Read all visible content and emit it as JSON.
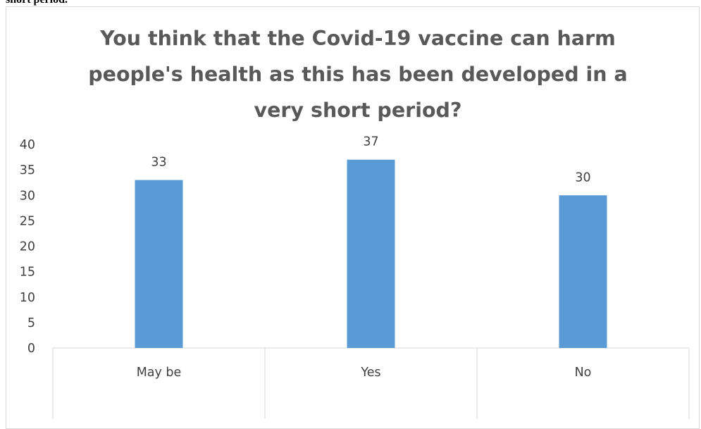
{
  "caption_fragment": "short period.",
  "chart_data": {
    "type": "bar",
    "title": "You think that the Covid-19 vaccine can harm people's health as this has been developed in a very short period?",
    "title_lines": [
      "You think that the Covid-19 vaccine can harm",
      "people's health as this has been developed in a",
      "very short period?"
    ],
    "categories": [
      "May be",
      "Yes",
      "No"
    ],
    "values": [
      33,
      37,
      30
    ],
    "data_labels": [
      "33",
      "37",
      "30"
    ],
    "ylim": [
      0,
      40
    ],
    "yticks": [
      0,
      5,
      10,
      15,
      20,
      25,
      30,
      35,
      40
    ],
    "xlabel": "",
    "ylabel": "",
    "grid": false,
    "legend": "none",
    "bar_color": "#5b9bd5",
    "axis_color": "#d9d9d9",
    "text_color": "#404040",
    "title_color": "#595959"
  }
}
